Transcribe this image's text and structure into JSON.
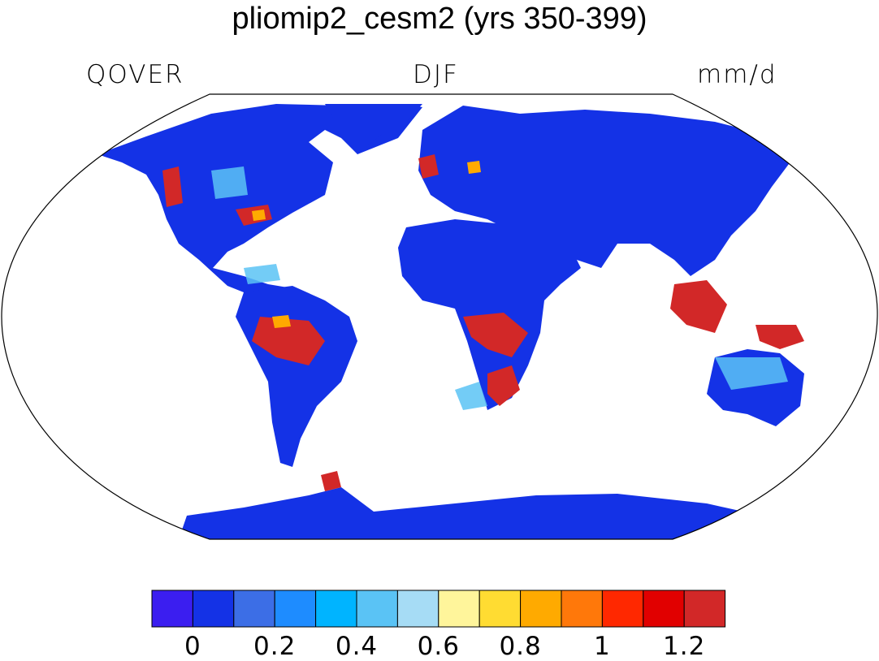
{
  "title": "pliomip2_cesm2 (yrs 350-399)",
  "left_label": "QOVER",
  "center_label": "DJF",
  "right_label": "mm/d",
  "colorbar": {
    "colors": [
      "#3b1ef0",
      "#1432e6",
      "#3c6ee6",
      "#1e8cff",
      "#00b4ff",
      "#5ac3f5",
      "#a6dcf5",
      "#fff59b",
      "#ffdc32",
      "#ffaa00",
      "#ff780a",
      "#ff2800",
      "#e10000",
      "#d22828"
    ],
    "ticks": [
      "0",
      "0.2",
      "0.4",
      "0.6",
      "0.8",
      "1",
      "1.2"
    ]
  },
  "land_color": "#1432e6"
}
